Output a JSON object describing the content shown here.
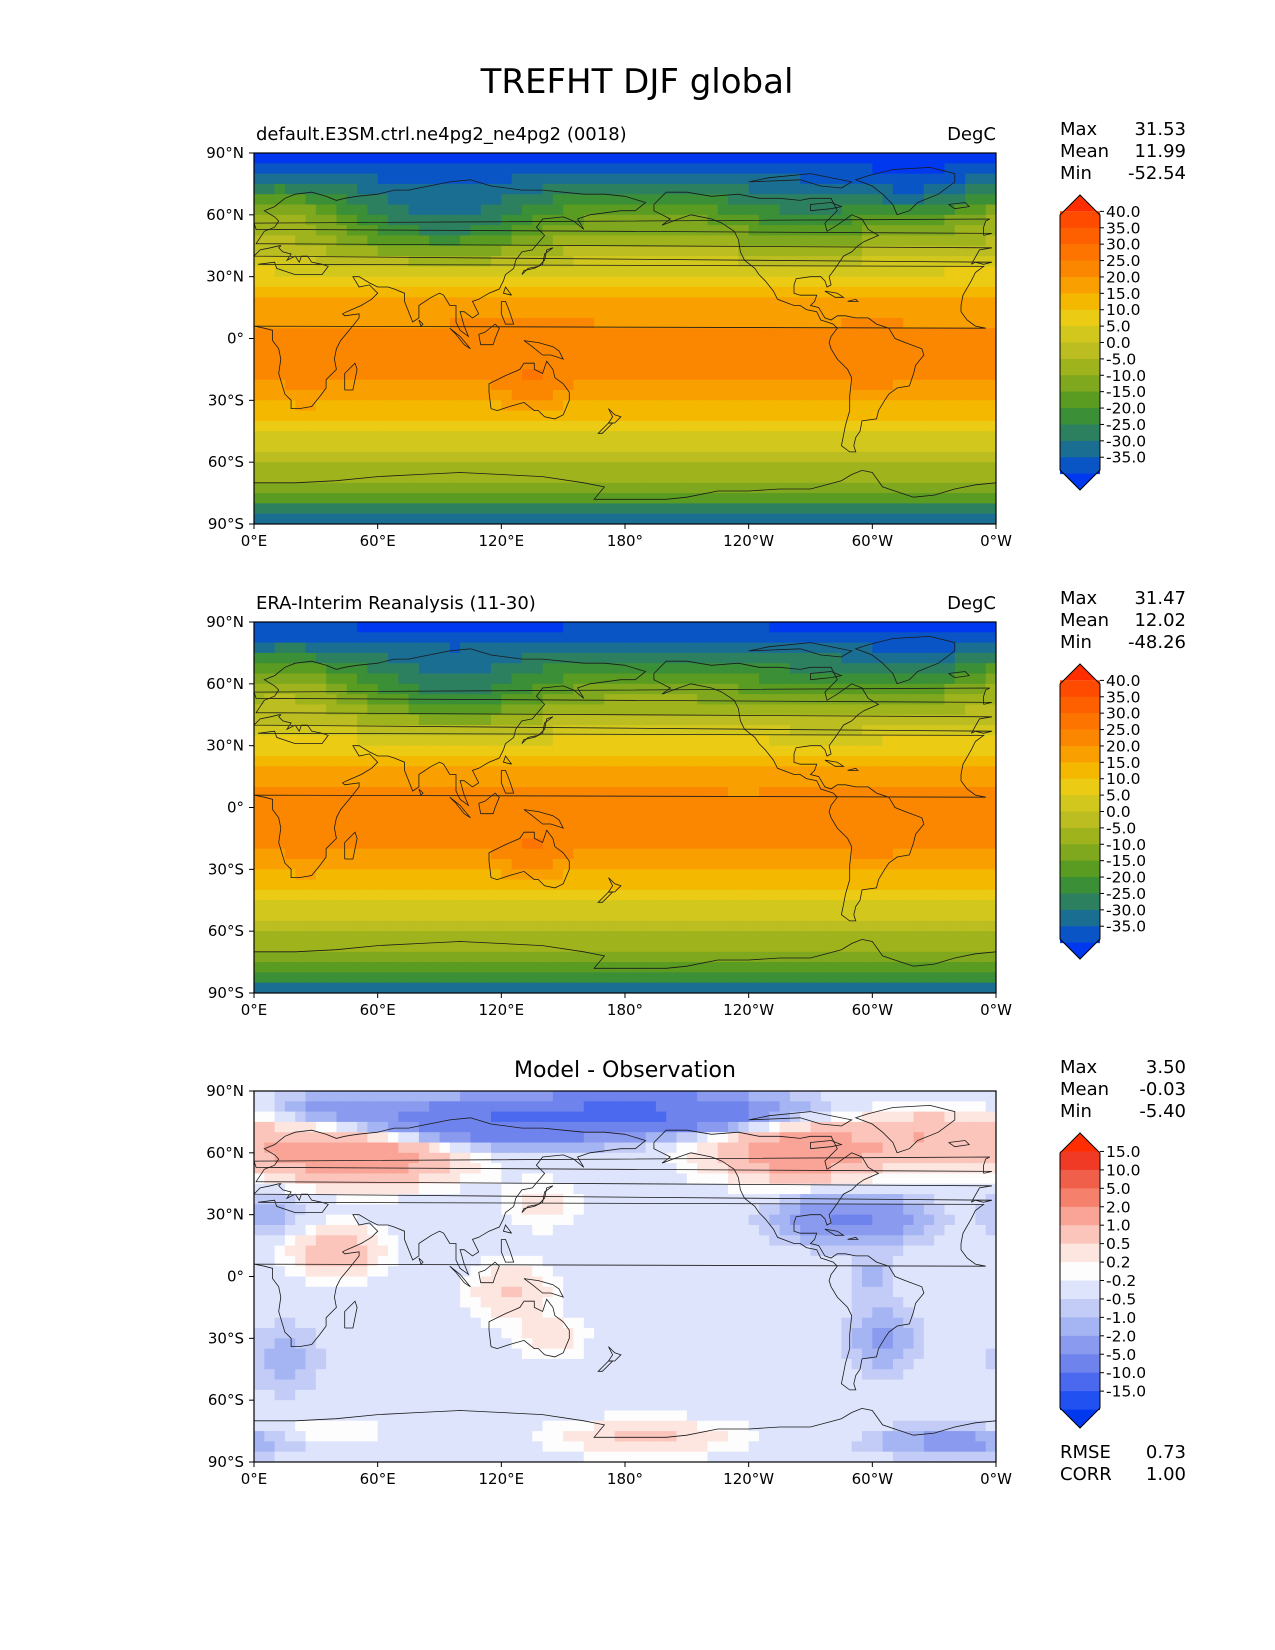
{
  "suptitle": "TREFHT DJF global",
  "xticks": [
    "0°E",
    "60°E",
    "120°E",
    "180°",
    "120°W",
    "60°W",
    "0°W"
  ],
  "yticks": [
    "90°N",
    "60°N",
    "30°N",
    "0°",
    "30°S",
    "60°S",
    "90°S"
  ],
  "panels": [
    {
      "left_title": "default.E3SM.ctrl.ne4pg2_ne4pg2 (0018)",
      "right_title": "DegC",
      "center_title": "",
      "stats": [
        {
          "label": "Max",
          "value": "31.53"
        },
        {
          "label": "Mean",
          "value": "11.99"
        },
        {
          "label": "Min",
          "value": "-52.54"
        }
      ],
      "colorbar_labels": [
        "40.0",
        "35.0",
        "30.0",
        "25.0",
        "20.0",
        "15.0",
        "10.0",
        "5.0",
        "0.0",
        "-5.0",
        "-10.0",
        "-15.0",
        "-20.0",
        "-25.0",
        "-30.0",
        "-35.0"
      ],
      "extra_stats": []
    },
    {
      "left_title": "ERA-Interim Reanalysis (11-30)",
      "right_title": "DegC",
      "center_title": "",
      "stats": [
        {
          "label": "Max",
          "value": "31.47"
        },
        {
          "label": "Mean",
          "value": "12.02"
        },
        {
          "label": "Min",
          "value": "-48.26"
        }
      ],
      "colorbar_labels": [
        "40.0",
        "35.0",
        "30.0",
        "25.0",
        "20.0",
        "15.0",
        "10.0",
        "5.0",
        "0.0",
        "-5.0",
        "-10.0",
        "-15.0",
        "-20.0",
        "-25.0",
        "-30.0",
        "-35.0"
      ],
      "extra_stats": []
    },
    {
      "left_title": "",
      "right_title": "",
      "center_title": "Model - Observation",
      "stats": [
        {
          "label": "Max",
          "value": "3.50"
        },
        {
          "label": "Mean",
          "value": "-0.03"
        },
        {
          "label": "Min",
          "value": "-5.40"
        }
      ],
      "colorbar_labels": [
        "15.0",
        "10.0",
        "5.0",
        "2.0",
        "1.0",
        "0.5",
        "0.2",
        "-0.2",
        "-0.5",
        "-1.0",
        "-2.0",
        "-5.0",
        "-10.0",
        "-15.0"
      ],
      "extra_stats": [
        {
          "label": "RMSE",
          "value": "0.73"
        },
        {
          "label": "CORR",
          "value": "1.00"
        }
      ]
    }
  ],
  "colors": {
    "temp_levels": [
      "#ff2d00",
      "#fe4b00",
      "#fe6000",
      "#fd7400",
      "#fb8700",
      "#f9a000",
      "#f5b800",
      "#eccb14",
      "#d2c81d",
      "#bbbd20",
      "#9fb41c",
      "#80a81f",
      "#5a9b22",
      "#3b8f36",
      "#2c8060",
      "#1a6e92",
      "#0a55c6",
      "#0038f0"
    ],
    "diff_levels": [
      "#ff2d00",
      "#f03a26",
      "#ef5f4a",
      "#f5806c",
      "#f9a496",
      "#fbc5bb",
      "#fde5e0",
      "#fdfdfd",
      "#dee4fb",
      "#c2ccf7",
      "#a5b4f2",
      "#8a9bef",
      "#6f83ed",
      "#4a69ef",
      "#2251f2",
      "#0038f0"
    ]
  },
  "chart_data": [
    {
      "type": "heatmap",
      "title": "default.E3SM.ctrl.ne4pg2_ne4pg2 (0018)",
      "units": "DegC",
      "xlim": [
        0,
        360
      ],
      "ylim": [
        -90,
        90
      ],
      "zonal_mean_profile": {
        "lat": [
          90,
          75,
          60,
          45,
          30,
          15,
          0,
          -15,
          -30,
          -45,
          -60,
          -75,
          -90
        ],
        "value": [
          -40,
          -25,
          -10,
          0,
          12,
          22,
          27,
          26,
          20,
          10,
          0,
          -8,
          -33
        ]
      },
      "levels": [
        -35,
        -30,
        -25,
        -20,
        -15,
        -10,
        -5,
        0,
        5,
        10,
        15,
        20,
        25,
        30,
        35,
        40
      ],
      "max": 31.53,
      "mean": 11.99,
      "min": -52.54
    },
    {
      "type": "heatmap",
      "title": "ERA-Interim Reanalysis (11-30)",
      "units": "DegC",
      "xlim": [
        0,
        360
      ],
      "ylim": [
        -90,
        90
      ],
      "zonal_mean_profile": {
        "lat": [
          90,
          75,
          60,
          45,
          30,
          15,
          0,
          -15,
          -30,
          -45,
          -60,
          -75,
          -90
        ],
        "value": [
          -37,
          -24,
          -10,
          1,
          13,
          23,
          27,
          26,
          20,
          10,
          0,
          -8,
          -30
        ]
      },
      "levels": [
        -35,
        -30,
        -25,
        -20,
        -15,
        -10,
        -5,
        0,
        5,
        10,
        15,
        20,
        25,
        30,
        35,
        40
      ],
      "max": 31.47,
      "mean": 12.02,
      "min": -48.26
    },
    {
      "type": "heatmap",
      "title": "Model - Observation",
      "xlim": [
        0,
        360
      ],
      "ylim": [
        -90,
        90
      ],
      "levels": [
        -15,
        -10,
        -5,
        -2,
        -1,
        -0.5,
        -0.2,
        0.2,
        0.5,
        1,
        2,
        5,
        10,
        15
      ],
      "max": 3.5,
      "mean": -0.03,
      "min": -5.4,
      "rmse": 0.73,
      "corr": 1.0
    }
  ]
}
